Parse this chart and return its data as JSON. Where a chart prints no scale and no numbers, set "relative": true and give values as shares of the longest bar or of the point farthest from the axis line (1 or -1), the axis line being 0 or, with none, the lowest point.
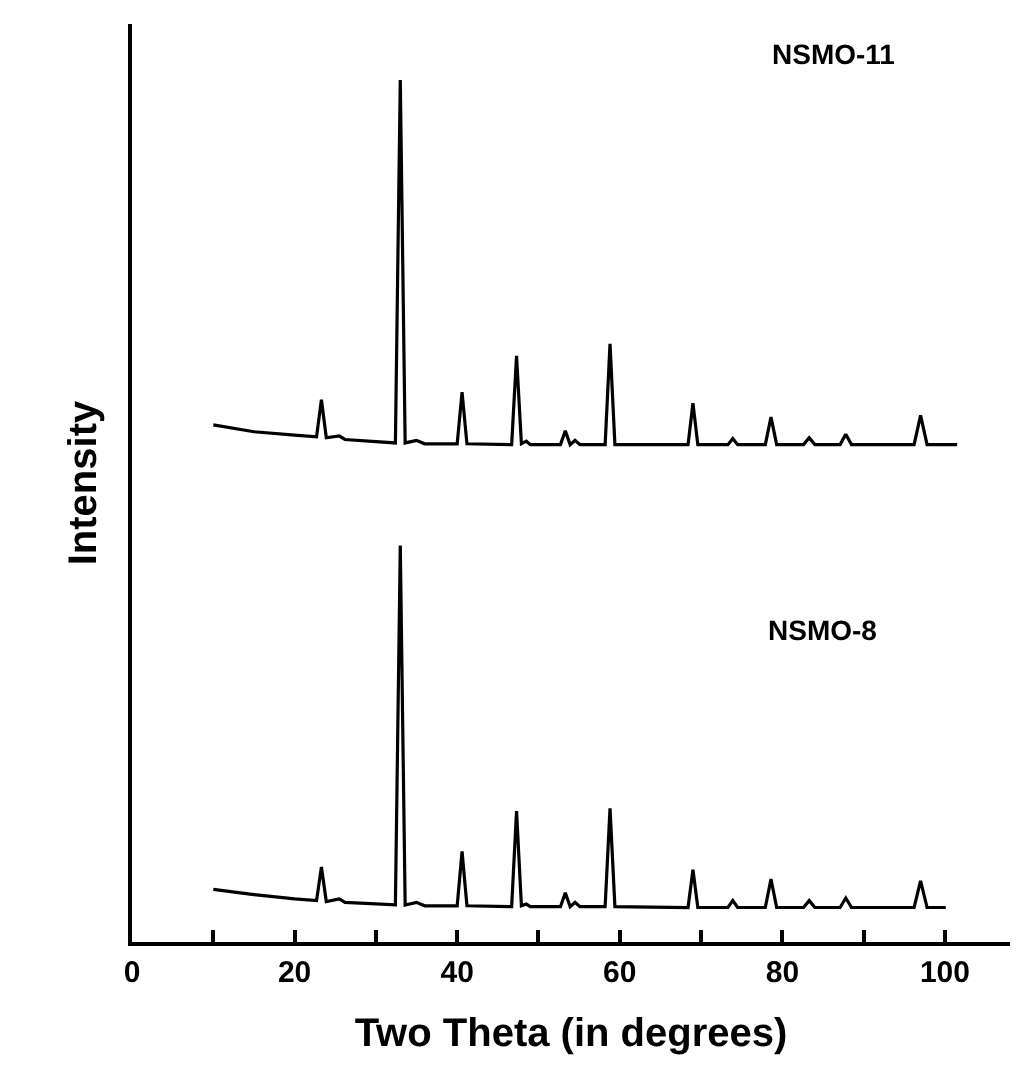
{
  "chart_data": {
    "type": "line",
    "xlabel": "Two Theta (in degrees)",
    "ylabel": "Intensity",
    "relative": true,
    "xlim": [
      0,
      108
    ],
    "xticks": [
      0,
      {
        "value": 10,
        "label": null
      },
      20,
      {
        "value": 30,
        "label": null
      },
      40,
      {
        "value": 50,
        "label": null
      },
      60,
      {
        "value": 70,
        "label": null
      },
      80,
      {
        "value": 90,
        "label": null
      },
      100
    ],
    "line_style": "solid",
    "series": [
      {
        "color": "#000000",
        "x": [
          10,
          15,
          20,
          22.7,
          23.3,
          23.9,
          25.5,
          26.2,
          32.4,
          33.0,
          33.6,
          35,
          36,
          40.0,
          40.6,
          41.2,
          46.7,
          47.3,
          47.9,
          48.5,
          49,
          52.7,
          53.3,
          53.9,
          54.5,
          55.1,
          58.2,
          58.8,
          59.4,
          68.4,
          69.0,
          69.6,
          73.3,
          73.9,
          74.5,
          77.9,
          78.6,
          79.3,
          82.6,
          83.3,
          84,
          87.1,
          87.8,
          88.5,
          96.2,
          97.0,
          97.8,
          101.5
        ],
        "values": [
          0.6,
          0.592,
          0.588,
          0.586,
          0.629,
          0.585,
          0.587,
          0.583,
          0.579,
          1.0,
          0.579,
          0.582,
          0.578,
          0.578,
          0.638,
          0.578,
          0.577,
          0.68,
          0.578,
          0.581,
          0.577,
          0.577,
          0.593,
          0.577,
          0.582,
          0.577,
          0.577,
          0.694,
          0.577,
          0.577,
          0.625,
          0.577,
          0.577,
          0.584,
          0.577,
          0.577,
          0.609,
          0.577,
          0.577,
          0.585,
          0.577,
          0.577,
          0.589,
          0.577,
          0.577,
          0.611,
          0.577,
          0.577
        ]
      },
      {
        "color": "#000000",
        "x": [
          10,
          15,
          20,
          22.7,
          23.3,
          23.9,
          25.5,
          26.2,
          32.4,
          33.0,
          33.6,
          35,
          36,
          40.0,
          40.6,
          41.2,
          46.7,
          47.3,
          47.9,
          48.5,
          49,
          52.7,
          53.3,
          53.9,
          54.5,
          55.1,
          58.2,
          58.8,
          59.4,
          68.4,
          69.0,
          69.6,
          73.3,
          73.9,
          74.5,
          77.9,
          78.6,
          79.3,
          82.6,
          83.3,
          84,
          87.1,
          87.8,
          88.5,
          96.2,
          97.0,
          97.8,
          100.1
        ],
        "values": [
          0.061,
          0.055,
          0.05,
          0.048,
          0.087,
          0.047,
          0.05,
          0.046,
          0.043,
          0.46,
          0.043,
          0.046,
          0.042,
          0.042,
          0.105,
          0.042,
          0.041,
          0.152,
          0.042,
          0.044,
          0.041,
          0.041,
          0.057,
          0.041,
          0.046,
          0.041,
          0.041,
          0.155,
          0.041,
          0.04,
          0.084,
          0.04,
          0.04,
          0.048,
          0.04,
          0.04,
          0.073,
          0.04,
          0.04,
          0.048,
          0.04,
          0.04,
          0.051,
          0.04,
          0.04,
          0.071,
          0.04,
          0.04
        ]
      }
    ],
    "annotations": [
      "NSMO-11",
      "NSMO-8"
    ]
  }
}
